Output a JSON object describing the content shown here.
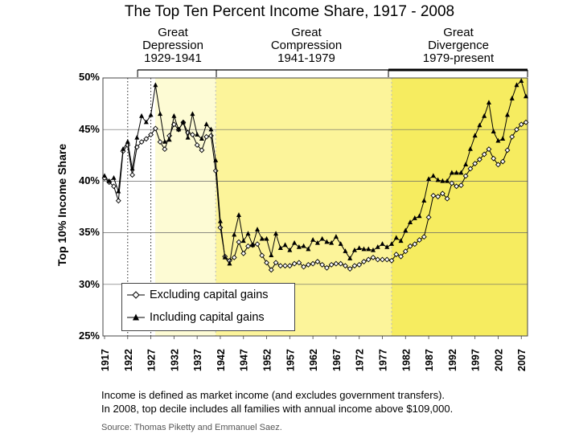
{
  "chart_data": {
    "type": "line",
    "title": "The Top Ten Percent Income Share, 1917 - 2008",
    "xlabel": "",
    "ylabel": "Top 10% Income Share",
    "xlim": [
      1917,
      2008
    ],
    "ylim": [
      25,
      50
    ],
    "yticks": [
      "25%",
      "30%",
      "35%",
      "40%",
      "45%",
      "50%"
    ],
    "xticks": [
      "1917",
      "1922",
      "1927",
      "1932",
      "1937",
      "1942",
      "1947",
      "1952",
      "1957",
      "1962",
      "1967",
      "1972",
      "1977",
      "1982",
      "1987",
      "1992",
      "1997",
      "2002",
      "2007"
    ],
    "eras": [
      {
        "line1": "Great",
        "line2": "Depression",
        "line3": "1929-1941",
        "start": 1929,
        "end": 1941
      },
      {
        "line1": "Great",
        "line2": "Compression",
        "line3": "1941-1979",
        "start": 1941,
        "end": 1979
      },
      {
        "line1": "Great",
        "line2": "Divergence",
        "line3": "1979-present",
        "start": 1979,
        "end": 2008
      }
    ],
    "x": [
      1917,
      1918,
      1919,
      1920,
      1921,
      1922,
      1923,
      1924,
      1925,
      1926,
      1927,
      1928,
      1929,
      1930,
      1931,
      1932,
      1933,
      1934,
      1935,
      1936,
      1937,
      1938,
      1939,
      1940,
      1941,
      1942,
      1943,
      1944,
      1945,
      1946,
      1947,
      1948,
      1949,
      1950,
      1951,
      1952,
      1953,
      1954,
      1955,
      1956,
      1957,
      1958,
      1959,
      1960,
      1961,
      1962,
      1963,
      1964,
      1965,
      1966,
      1967,
      1968,
      1969,
      1970,
      1971,
      1972,
      1973,
      1974,
      1975,
      1976,
      1977,
      1978,
      1979,
      1980,
      1981,
      1982,
      1983,
      1984,
      1985,
      1986,
      1987,
      1988,
      1989,
      1990,
      1991,
      1992,
      1993,
      1994,
      1995,
      1996,
      1997,
      1998,
      1999,
      2000,
      2001,
      2002,
      2003,
      2004,
      2005,
      2006,
      2007,
      2008
    ],
    "series": [
      {
        "name": "Excluding capital gains",
        "marker": "diamond",
        "values": [
          40.3,
          39.9,
          39.5,
          38.1,
          42.9,
          43.5,
          40.6,
          43.3,
          43.8,
          44.1,
          44.5,
          45.1,
          43.8,
          43.1,
          44.4,
          45.5,
          45.0,
          45.7,
          44.7,
          44.5,
          43.5,
          43.0,
          44.3,
          44.4,
          41.0,
          35.5,
          32.7,
          32.3,
          32.6,
          34.1,
          33.0,
          33.7,
          33.8,
          33.9,
          32.8,
          32.1,
          31.4,
          32.1,
          31.8,
          31.8,
          31.8,
          32.0,
          32.1,
          31.7,
          31.9,
          32.0,
          32.2,
          31.9,
          31.6,
          31.9,
          32.0,
          32.0,
          31.8,
          31.5,
          31.8,
          31.9,
          32.2,
          32.4,
          32.6,
          32.4,
          32.4,
          32.4,
          32.3,
          32.9,
          32.7,
          33.2,
          33.7,
          33.9,
          34.3,
          34.6,
          36.5,
          38.6,
          38.5,
          38.8,
          38.3,
          39.8,
          39.5,
          39.6,
          40.5,
          41.2,
          41.7,
          42.1,
          42.6,
          43.1,
          42.2,
          41.6,
          41.9,
          43.0,
          44.3,
          45.0,
          45.5,
          45.7
        ]
      },
      {
        "name": "Including capital gains",
        "marker": "triangle",
        "values": [
          40.5,
          40.0,
          40.3,
          39.0,
          43.1,
          43.8,
          41.2,
          44.2,
          46.3,
          45.7,
          46.4,
          49.3,
          46.5,
          43.8,
          44.0,
          46.3,
          45.0,
          45.7,
          44.2,
          46.5,
          44.5,
          44.1,
          45.5,
          45.0,
          42.0,
          36.1,
          32.6,
          32.0,
          34.8,
          36.7,
          34.2,
          34.9,
          33.8,
          35.3,
          34.4,
          34.4,
          32.8,
          34.9,
          33.5,
          33.8,
          33.3,
          34.0,
          33.6,
          33.7,
          33.4,
          34.3,
          34.0,
          34.4,
          34.1,
          34.0,
          34.6,
          33.9,
          33.2,
          32.5,
          33.3,
          33.5,
          33.4,
          33.4,
          33.3,
          33.6,
          33.9,
          33.6,
          33.9,
          34.5,
          34.2,
          35.2,
          36.0,
          36.4,
          36.6,
          38.1,
          40.2,
          40.5,
          40.1,
          40.0,
          40.0,
          40.8,
          40.8,
          40.8,
          41.6,
          43.1,
          44.4,
          45.4,
          46.3,
          47.6,
          44.8,
          43.9,
          44.1,
          46.4,
          48.0,
          49.3,
          49.7,
          48.2
        ]
      }
    ]
  },
  "notes": {
    "line1": "Income is defined as market income (and excludes government transfers).",
    "line2": "In 2008, top decile includes all families with annual income above $109,000.",
    "source": "Source: Thomas Piketty and Emmanuel Saez."
  },
  "colors": {
    "band_light": "#fdfbd4",
    "band_yellow": "#fcf49a",
    "band_dark": "#f6ec60",
    "line": "#000000"
  }
}
